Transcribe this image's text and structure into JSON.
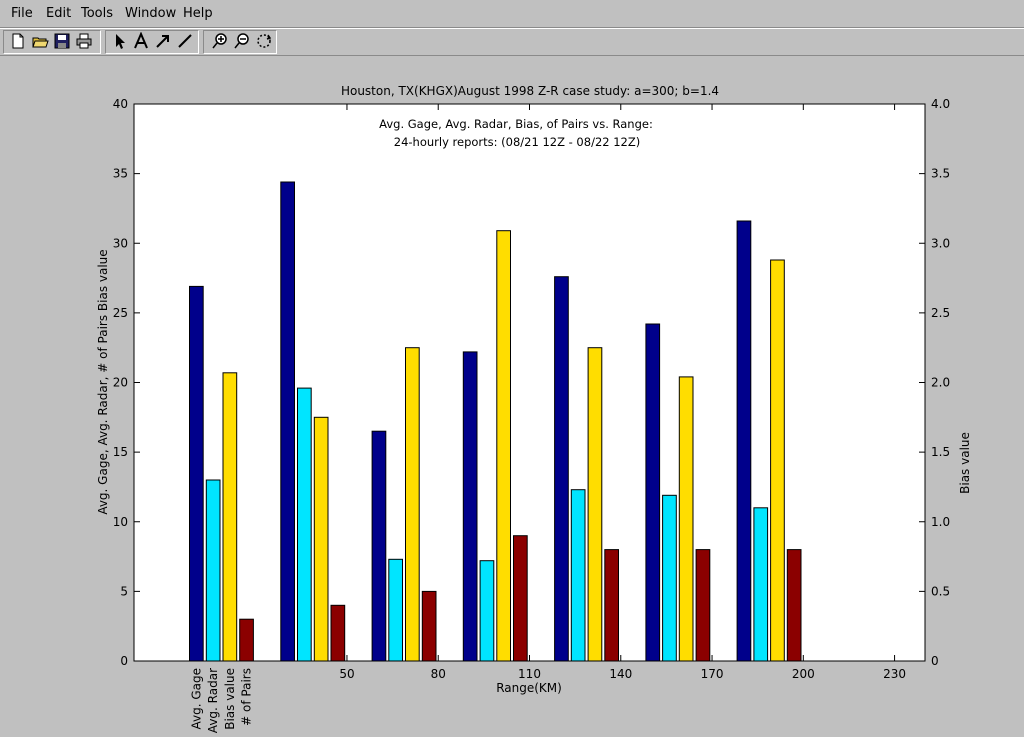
{
  "menu": {
    "items": [
      {
        "label": "File",
        "key": "F"
      },
      {
        "label": "Edit",
        "key": "E"
      },
      {
        "label": "Tools",
        "key": "T"
      },
      {
        "label": "Window",
        "key": "W"
      },
      {
        "label": "Help",
        "key": "H"
      }
    ]
  },
  "toolbar": {
    "buttons": [
      "new-file-icon",
      "open-folder-icon",
      "save-icon",
      "print-icon",
      "select-arrow-icon",
      "text-icon",
      "arrow-tool-icon",
      "line-tool-icon",
      "zoom-in-icon",
      "zoom-out-icon",
      "rotate-icon"
    ]
  },
  "chart_data": {
    "type": "bar",
    "title": "Houston, TX(KHGX)August 1998 Z-R case study: a=300; b=1.4",
    "subtitle_lines": [
      "Avg. Gage, Avg. Radar, Bias, of Pairs vs. Range:",
      "24-hourly reports: (08/21 12Z - 08/22 12Z)"
    ],
    "xlabel": "Range(KM)",
    "ylabel": "Avg. Gage, Avg. Radar, # of Pairs  Bias value",
    "ylabel_right": "Bias value",
    "ylim": [
      0,
      40
    ],
    "yticks": [
      0,
      5,
      10,
      15,
      20,
      25,
      30,
      35,
      40
    ],
    "ylim_right": [
      0,
      4
    ],
    "yticks_right": [
      "0",
      "0.5",
      "1.0",
      "1.5",
      "2.0",
      "2.5",
      "3.0",
      "3.5",
      "4.0"
    ],
    "xlim": [
      -20,
      240
    ],
    "xticks": [
      50,
      80,
      110,
      140,
      170,
      200,
      230
    ],
    "category_labels": [
      "Avg. Gage",
      "Avg. Radar",
      "Bias value",
      "# of Pairs"
    ],
    "group_centers": [
      20,
      50,
      80,
      110,
      140,
      170,
      200
    ],
    "series": [
      {
        "name": "Avg. Gage",
        "color": "#00008b",
        "values": [
          26.9,
          34.4,
          16.5,
          22.2,
          27.6,
          24.2,
          31.6
        ]
      },
      {
        "name": "Avg. Radar",
        "color": "#00e5ff",
        "values": [
          13.0,
          19.6,
          7.3,
          7.2,
          12.3,
          11.9,
          11.0
        ]
      },
      {
        "name": "Bias value",
        "color": "#ffdd00",
        "values": [
          20.7,
          17.5,
          22.5,
          30.9,
          22.5,
          20.4,
          28.8
        ]
      },
      {
        "name": "# of Pairs",
        "color": "#8b0000",
        "values": [
          3,
          4,
          5,
          9,
          8,
          8,
          8
        ]
      }
    ],
    "grid": false,
    "legend": "none"
  }
}
